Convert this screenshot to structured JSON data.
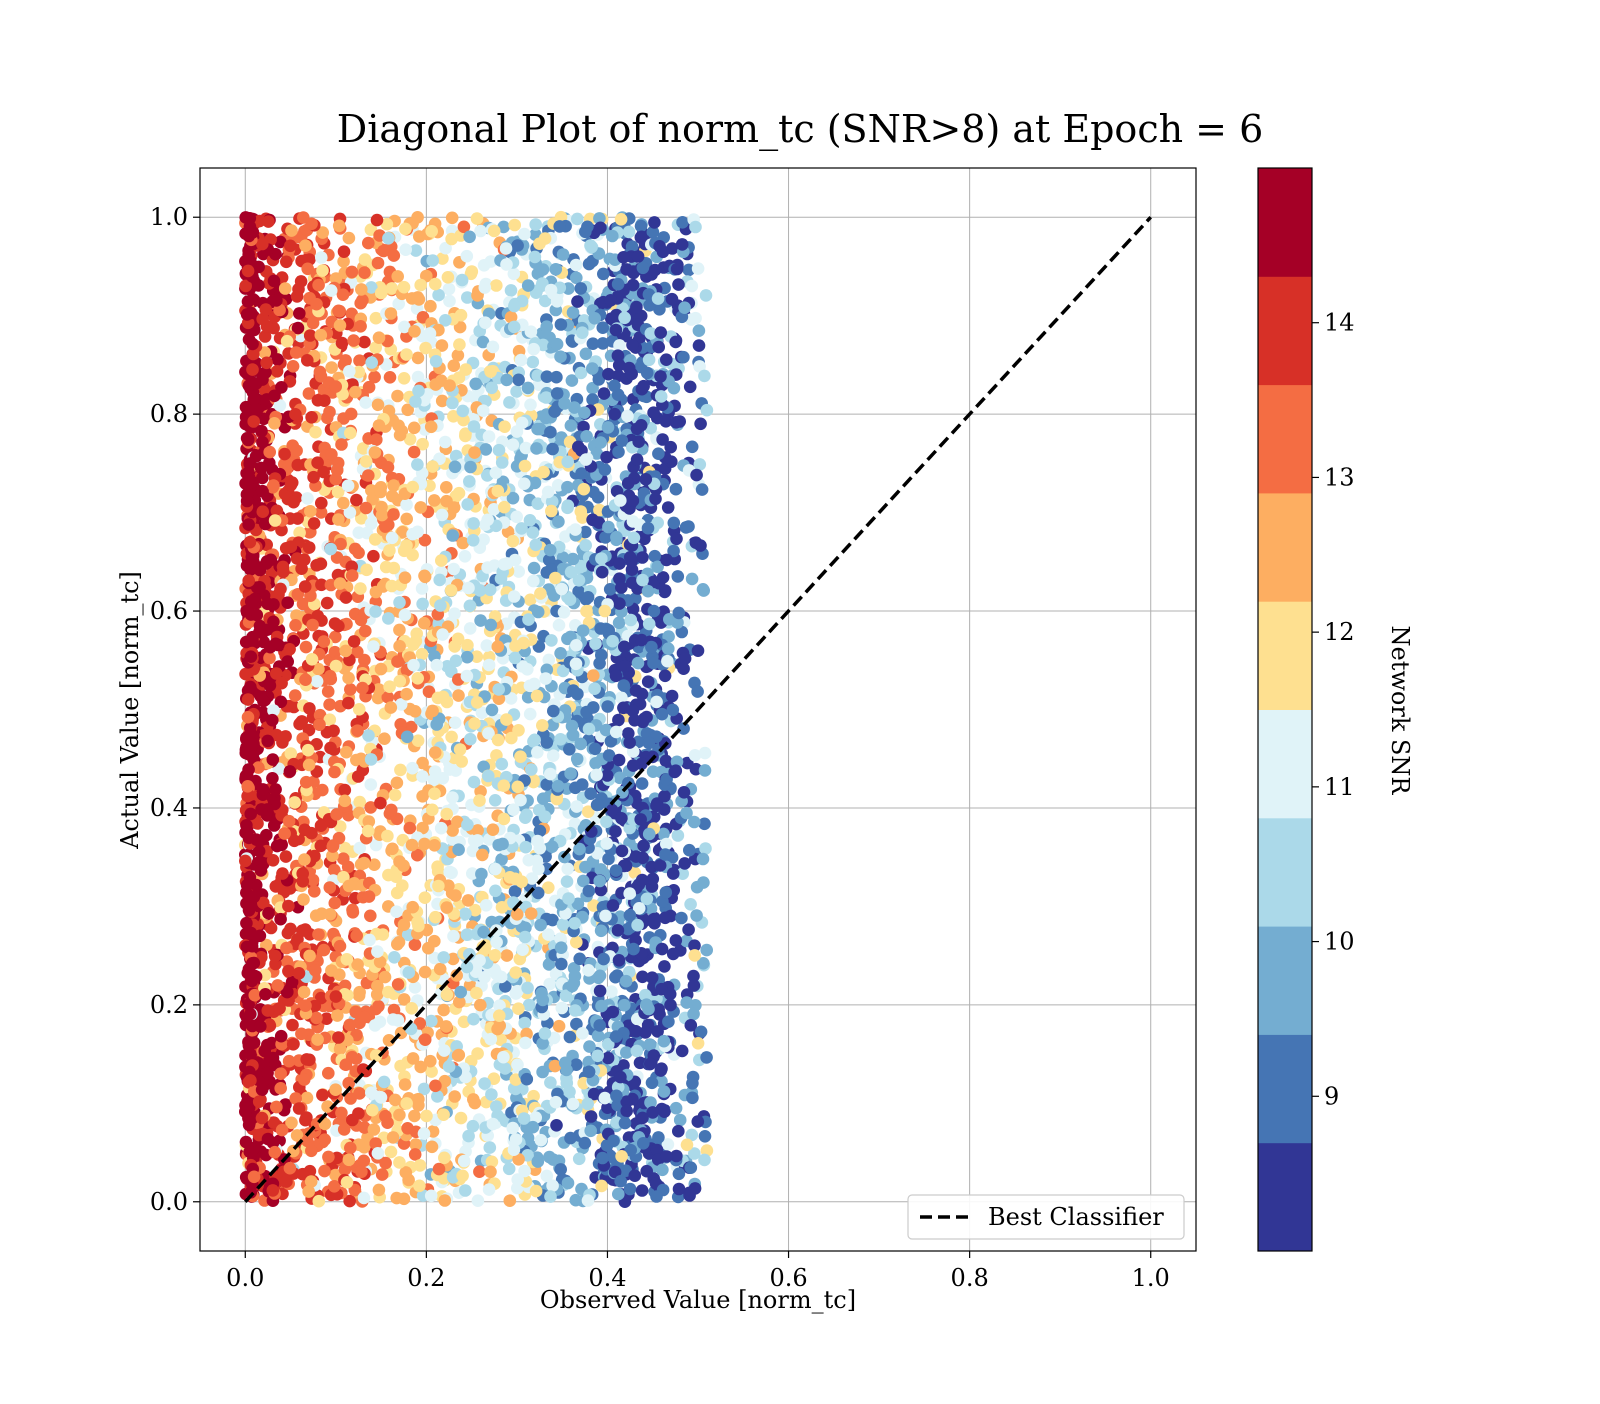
{
  "chart_data": {
    "type": "scatter",
    "title": "Diagonal Plot of norm_tc (SNR>8) at Epoch = 6",
    "xlabel": "Observed Value [norm_tc]",
    "ylabel": "Actual Value [norm_tc]",
    "xlim": [
      -0.05,
      1.05
    ],
    "ylim": [
      -0.05,
      1.05
    ],
    "x_ticks": [
      0.0,
      0.2,
      0.4,
      0.6,
      0.8,
      1.0
    ],
    "x_tick_labels": [
      "0.0",
      "0.2",
      "0.4",
      "0.6",
      "0.8",
      "1.0"
    ],
    "y_ticks": [
      0.0,
      0.2,
      0.4,
      0.6,
      0.8,
      1.0
    ],
    "y_tick_labels": [
      "0.0",
      "0.2",
      "0.4",
      "0.6",
      "0.8",
      "1.0"
    ],
    "grid": true,
    "legend": {
      "position": "lower-right",
      "entries": [
        {
          "label": "Best Classifier",
          "style": "dashed",
          "color": "#000000"
        }
      ]
    },
    "reference_line": {
      "name": "Best Classifier",
      "x": [
        0.0,
        1.0
      ],
      "y": [
        0.0,
        1.0
      ]
    },
    "colorbar": {
      "label": "Network SNR",
      "min": 8,
      "max": 15,
      "ticks": [
        9,
        10,
        11,
        12,
        13,
        14
      ],
      "tick_labels": [
        "9",
        "10",
        "11",
        "12",
        "13",
        "14"
      ],
      "levels": [
        {
          "low": 8.0,
          "high": 8.7,
          "color": "#313695"
        },
        {
          "low": 8.7,
          "high": 9.4,
          "color": "#4575b4"
        },
        {
          "low": 9.4,
          "high": 10.1,
          "color": "#74add1"
        },
        {
          "low": 10.1,
          "high": 10.8,
          "color": "#abd9e9"
        },
        {
          "low": 10.8,
          "high": 11.5,
          "color": "#e0f3f8"
        },
        {
          "low": 11.5,
          "high": 12.2,
          "color": "#fee090"
        },
        {
          "low": 12.2,
          "high": 12.9,
          "color": "#fdae61"
        },
        {
          "low": 12.9,
          "high": 13.6,
          "color": "#f46d43"
        },
        {
          "low": 13.6,
          "high": 14.3,
          "color": "#d73027"
        },
        {
          "low": 14.3,
          "high": 15.0,
          "color": "#a50026"
        }
      ]
    },
    "scatter_distribution": {
      "actual_range": [
        0.0,
        1.0
      ],
      "observed_range": [
        0.0,
        0.51
      ],
      "trend": "higher Network SNR concentrates near observed 0.0; lower Network SNR spreads toward observed 0.45-0.5",
      "by_snr_level": [
        {
          "snr": 14.65,
          "observed_mean": 0.01,
          "observed_spread": 0.02
        },
        {
          "snr": 13.95,
          "observed_mean": 0.05,
          "observed_spread": 0.04
        },
        {
          "snr": 13.25,
          "observed_mean": 0.1,
          "observed_spread": 0.06
        },
        {
          "snr": 12.55,
          "observed_mean": 0.16,
          "observed_spread": 0.08
        },
        {
          "snr": 11.85,
          "observed_mean": 0.22,
          "observed_spread": 0.1
        },
        {
          "snr": 11.15,
          "observed_mean": 0.28,
          "observed_spread": 0.1
        },
        {
          "snr": 10.45,
          "observed_mean": 0.33,
          "observed_spread": 0.09
        },
        {
          "snr": 9.75,
          "observed_mean": 0.37,
          "observed_spread": 0.07
        },
        {
          "snr": 9.05,
          "observed_mean": 0.41,
          "observed_spread": 0.05
        },
        {
          "snr": 8.35,
          "observed_mean": 0.44,
          "observed_spread": 0.03
        }
      ]
    }
  }
}
